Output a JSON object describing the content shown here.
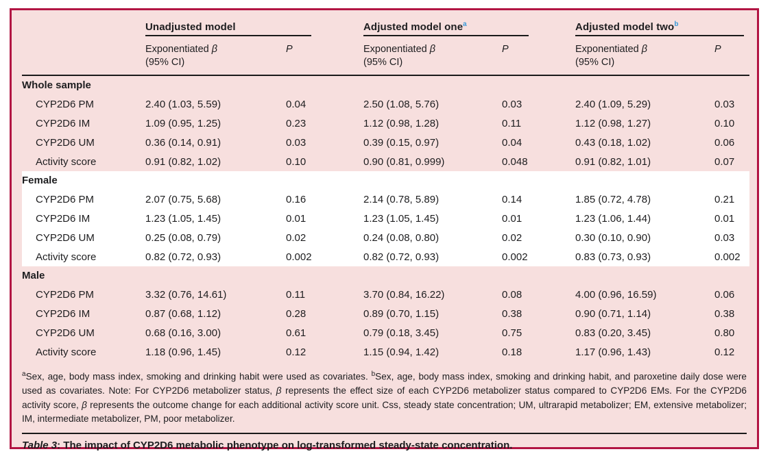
{
  "colors": {
    "table_background": "#f7dfde",
    "frame_border": "#b21543",
    "highlight_band": "#ffffff",
    "superscript_blue": "#3a9ad9",
    "rule_black": "#1a1a1a"
  },
  "table": {
    "groups": [
      {
        "label": "Unadjusted model",
        "sup": ""
      },
      {
        "label": "Adjusted model one",
        "sup": "a"
      },
      {
        "label": "Adjusted model two",
        "sup": "b"
      }
    ],
    "subheader": {
      "beta_pre": "Exponentiated ",
      "beta_sym": "β",
      "ci": "(95% CI)",
      "p": "P"
    },
    "sections": [
      {
        "label": "Whole sample",
        "highlight": false,
        "rows": [
          {
            "label": "CYP2D6 PM",
            "cells": [
              "2.40 (1.03, 5.59)",
              "0.04",
              "2.50 (1.08, 5.76)",
              "0.03",
              "2.40 (1.09, 5.29)",
              "0.03"
            ]
          },
          {
            "label": "CYP2D6 IM",
            "cells": [
              "1.09 (0.95, 1.25)",
              "0.23",
              "1.12 (0.98, 1.28)",
              "0.11",
              "1.12 (0.98, 1.27)",
              "0.10"
            ]
          },
          {
            "label": "CYP2D6 UM",
            "cells": [
              "0.36 (0.14, 0.91)",
              "0.03",
              "0.39 (0.15, 0.97)",
              "0.04",
              "0.43 (0.18, 1.02)",
              "0.06"
            ]
          },
          {
            "label": "Activity score",
            "cells": [
              "0.91 (0.82, 1.02)",
              "0.10",
              "0.90 (0.81, 0.999)",
              "0.048",
              "0.91 (0.82, 1.01)",
              "0.07"
            ]
          }
        ]
      },
      {
        "label": "Female",
        "highlight": true,
        "rows": [
          {
            "label": "CYP2D6 PM",
            "cells": [
              "2.07 (0.75, 5.68)",
              "0.16",
              "2.14 (0.78, 5.89)",
              "0.14",
              "1.85 (0.72, 4.78)",
              "0.21"
            ]
          },
          {
            "label": "CYP2D6 IM",
            "cells": [
              "1.23 (1.05, 1.45)",
              "0.01",
              "1.23 (1.05, 1.45)",
              "0.01",
              "1.23 (1.06, 1.44)",
              "0.01"
            ]
          },
          {
            "label": "CYP2D6 UM",
            "cells": [
              "0.25 (0.08, 0.79)",
              "0.02",
              "0.24 (0.08, 0.80)",
              "0.02",
              "0.30 (0.10, 0.90)",
              "0.03"
            ]
          },
          {
            "label": "Activity score",
            "cells": [
              "0.82 (0.72, 0.93)",
              "0.002",
              "0.82 (0.72, 0.93)",
              "0.002",
              "0.83 (0.73, 0.93)",
              "0.002"
            ]
          }
        ]
      },
      {
        "label": "Male",
        "highlight": false,
        "rows": [
          {
            "label": "CYP2D6 PM",
            "cells": [
              "3.32 (0.76, 14.61)",
              "0.11",
              "3.70 (0.84, 16.22)",
              "0.08",
              "4.00 (0.96, 16.59)",
              "0.06"
            ]
          },
          {
            "label": "CYP2D6 IM",
            "cells": [
              "0.87 (0.68, 1.12)",
              "0.28",
              "0.89 (0.70, 1.15)",
              "0.38",
              "0.90 (0.71, 1.14)",
              "0.38"
            ]
          },
          {
            "label": "CYP2D6 UM",
            "cells": [
              "0.68 (0.16, 3.00)",
              "0.61",
              "0.79 (0.18, 3.45)",
              "0.75",
              "0.83 (0.20, 3.45)",
              "0.80"
            ]
          },
          {
            "label": "Activity score",
            "cells": [
              "1.18 (0.96, 1.45)",
              "0.12",
              "1.15 (0.94, 1.42)",
              "0.18",
              "1.17 (0.96, 1.43)",
              "0.12"
            ]
          }
        ]
      }
    ]
  },
  "footnote": {
    "parts": [
      {
        "t": "sup",
        "v": "a"
      },
      {
        "t": "text",
        "v": "Sex, age, body mass index, smoking and drinking habit were used as covariates. "
      },
      {
        "t": "sup",
        "v": "b"
      },
      {
        "t": "text",
        "v": "Sex, age, body mass index, smoking and drinking habit, and paroxetine daily dose were used as covariates. Note: For CYP2D6 metabolizer status, "
      },
      {
        "t": "beta",
        "v": "β"
      },
      {
        "t": "text",
        "v": " represents the effect size of each CYP2D6 metabolizer status compared to CYP2D6 EMs. For the CYP2D6 activity score, "
      },
      {
        "t": "beta",
        "v": "β"
      },
      {
        "t": "text",
        "v": " represents the outcome change for each additional activity score unit. Css, steady state concentration; UM, ultrarapid metabolizer; EM, extensive metabolizer; IM, intermediate metabolizer, PM, poor metabolizer."
      }
    ]
  },
  "caption": {
    "label": "Table 3",
    "rest": ": The impact of CYP2D6 metabolic phenotype on log-transformed steady-state concentration."
  }
}
